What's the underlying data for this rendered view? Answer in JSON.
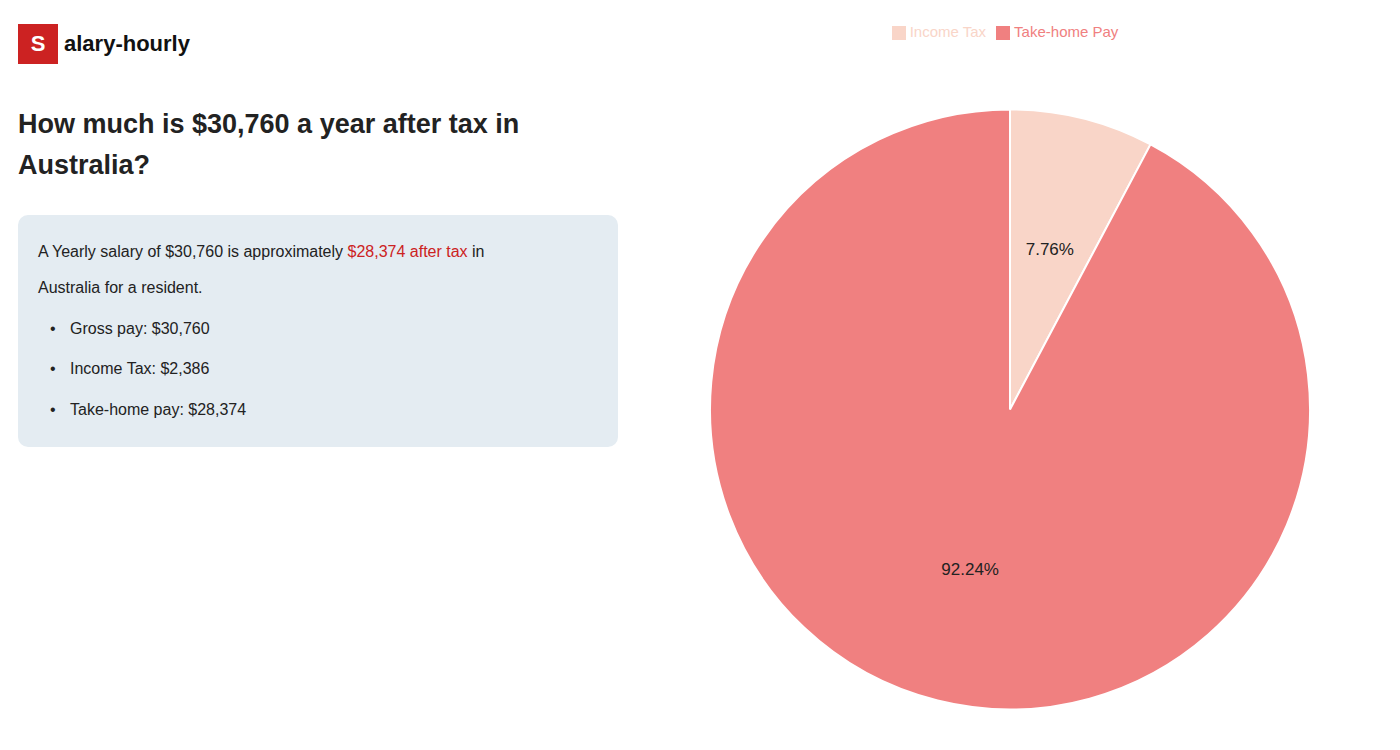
{
  "chart_data": {
    "type": "pie",
    "title": "How much is $30,760 a year after tax in\nAustralia?",
    "categories": [
      "Income Tax",
      "Take-home Pay"
    ],
    "values": [
      7.76,
      92.24
    ],
    "value_labels": [
      "7.76%",
      "92.24%"
    ],
    "colors": [
      "#f9d5c8",
      "#f08080"
    ],
    "data_labels": true,
    "legend": "top",
    "annotations": [
      {
        "spans": [
          {
            "text": "S",
            "color": "#ffffff",
            "background": "#cc2222"
          },
          {
            "text": "alary-hourly",
            "color": "#111111"
          }
        ]
      },
      {
        "spans": [
          {
            "text": "A Yearly salary of $30,760 is approximately ",
            "color": "#222222"
          },
          {
            "text": "$28,374 after tax",
            "color": "#cc2222"
          },
          {
            "text": " in",
            "color": "#222222"
          }
        ]
      },
      {
        "spans": [
          {
            "text": "Australia for a resident.",
            "color": "#222222"
          }
        ]
      },
      {
        "bullet": "•",
        "spans": [
          {
            "text": "Gross pay: $30,760",
            "color": "#222222"
          }
        ]
      },
      {
        "bullet": "•",
        "spans": [
          {
            "text": "Income Tax: $2,386",
            "color": "#222222"
          }
        ]
      },
      {
        "bullet": "•",
        "spans": [
          {
            "text": "Take-home pay: $28,374",
            "color": "#222222"
          }
        ]
      }
    ]
  }
}
